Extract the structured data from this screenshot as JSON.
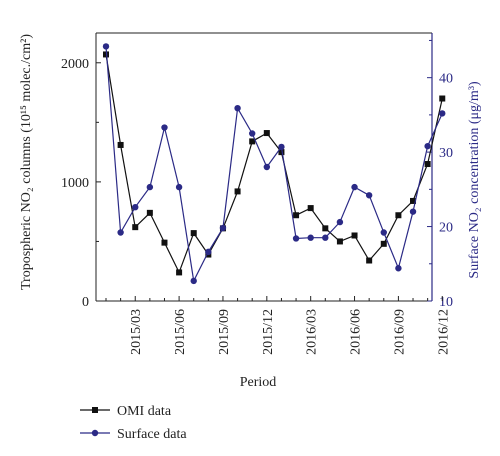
{
  "chart_data": {
    "type": "line",
    "xlabel": "Period",
    "ylabel_left": "Tropospheric NO₂ columns (10¹⁵ molec./cm²)",
    "ylabel_right": "Surface NO₂ concentration (μg/m³)",
    "categories": [
      "2015/01",
      "2015/02",
      "2015/03",
      "2015/04",
      "2015/05",
      "2015/06",
      "2015/07",
      "2015/08",
      "2015/09",
      "2015/10",
      "2015/11",
      "2015/12",
      "2016/01",
      "2016/02",
      "2016/03",
      "2016/04",
      "2016/05",
      "2016/06",
      "2016/07",
      "2016/08",
      "2016/09",
      "2016/10",
      "2016/11",
      "2016/12"
    ],
    "x_tick_labels": [
      "2015/03",
      "2015/06",
      "2015/09",
      "2015/12",
      "2016/03",
      "2016/06",
      "2016/09",
      "2016/12"
    ],
    "left_axis": {
      "ylim": [
        0,
        2250
      ],
      "ticks": [
        0,
        1000,
        2000
      ]
    },
    "right_axis": {
      "ylim": [
        10,
        46
      ],
      "ticks": [
        10,
        20,
        30,
        40
      ]
    },
    "series": [
      {
        "name": "OMI data",
        "axis": "left",
        "color": "#111111",
        "marker": "square",
        "values": [
          2070,
          1310,
          620,
          740,
          490,
          240,
          570,
          390,
          610,
          920,
          1340,
          1410,
          1250,
          720,
          780,
          610,
          500,
          550,
          340,
          480,
          720,
          840,
          1150,
          1700
        ]
      },
      {
        "name": "Surface data",
        "axis": "right",
        "color": "#2b2a86",
        "marker": "circle",
        "values": [
          44.2,
          19.2,
          22.6,
          25.3,
          33.3,
          25.3,
          12.7,
          16.6,
          19.8,
          35.9,
          32.5,
          28.0,
          30.7,
          18.4,
          18.5,
          18.5,
          20.6,
          25.3,
          24.2,
          19.2,
          14.4,
          22.0,
          30.8,
          35.2
        ]
      }
    ],
    "legend": {
      "placement": "bottom-left",
      "entries": [
        "OMI data",
        "Surface data"
      ]
    }
  }
}
